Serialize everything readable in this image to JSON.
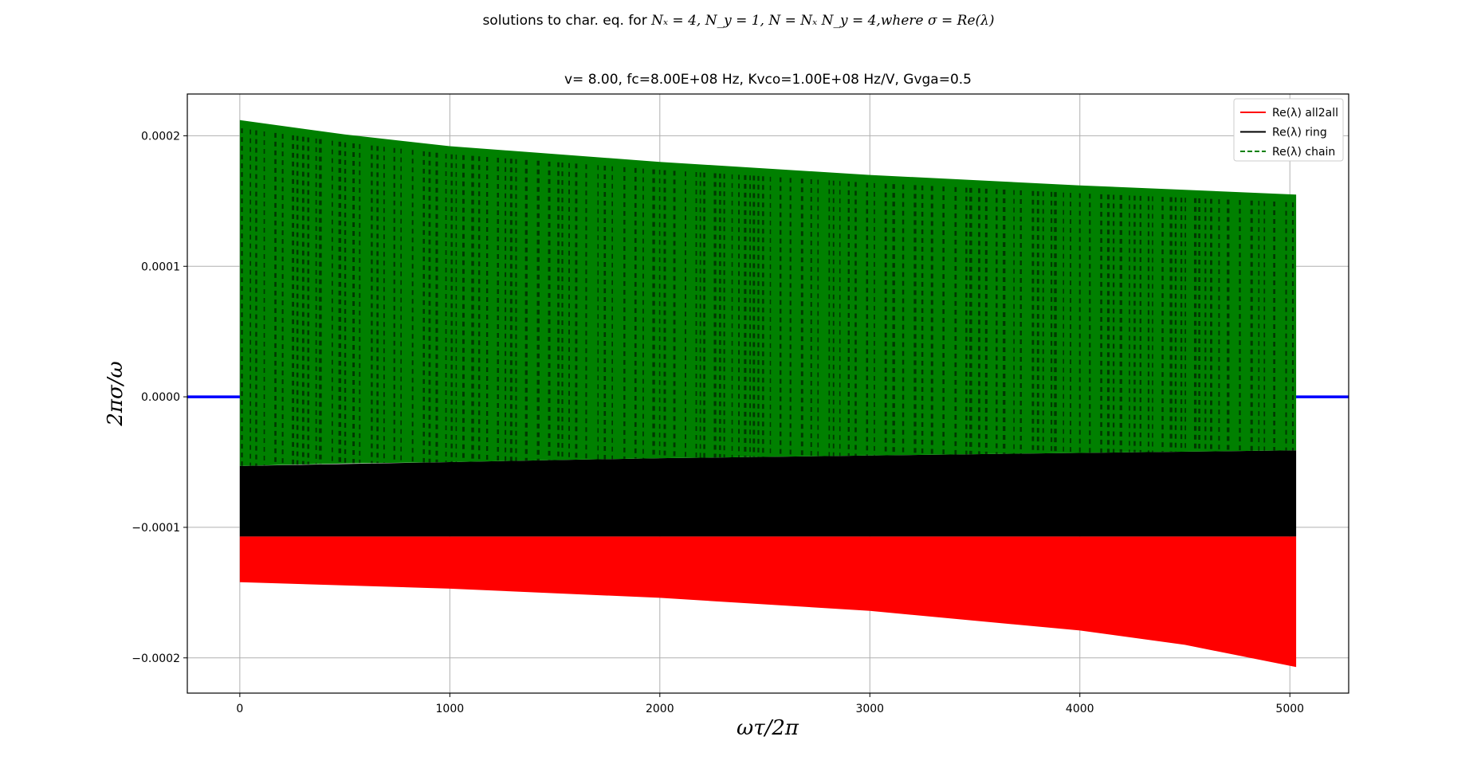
{
  "figure": {
    "suptitle_prefix": "solutions to char. eq. for ",
    "suptitle_math": "Nₓ = 4, N_y = 1, N = Nₓ N_y = 4,where σ = Re(λ)",
    "subtitle": "v= 8.00, fc=8.00E+08 Hz, Kvco=1.00E+08 Hz/V, Gvga=0.5"
  },
  "chart_data": {
    "type": "area",
    "title": "v= 8.00, fc=8.00E+08 Hz, Kvco=1.00E+08 Hz/V, Gvga=0.5",
    "xlabel": "ωτ/2π",
    "ylabel": "2πσ/ω",
    "xlim": [
      -250,
      5280
    ],
    "ylim": [
      -0.000227,
      0.000232
    ],
    "x_ticks": [
      0,
      1000,
      2000,
      3000,
      4000,
      5000
    ],
    "x_tick_labels": [
      "0",
      "1000",
      "2000",
      "3000",
      "4000",
      "5000"
    ],
    "y_ticks": [
      0.0002,
      0.0001,
      0.0,
      -0.0001,
      -0.0002
    ],
    "y_tick_labels": [
      "0.0002",
      "0.0001",
      "0.0000",
      "−0.0001",
      "−0.0002"
    ],
    "grid": true,
    "legend_position": "top-right",
    "colors": {
      "all2all": "#ff0000",
      "ring": "#000000",
      "chain": "#008000",
      "zero_line": "#0000ff",
      "grid": "#b0b0b0"
    },
    "zero_line": {
      "y": 0.0,
      "x_range": [
        -250,
        5280
      ]
    },
    "series": [
      {
        "name": "Re(λ) all2all",
        "style": "solid",
        "x": [
          0,
          1000,
          2000,
          3000,
          4000,
          4500,
          5030
        ],
        "upper": [
          -0.000107,
          -0.000107,
          -0.000107,
          -0.000107,
          -0.000107,
          -0.000107,
          -0.000107
        ],
        "lower": [
          -0.000142,
          -0.000147,
          -0.000154,
          -0.000164,
          -0.000179,
          -0.00019,
          -0.000207
        ]
      },
      {
        "name": "Re(λ) ring",
        "style": "solid",
        "x": [
          0,
          1000,
          2000,
          3000,
          4000,
          5030
        ],
        "upper": [
          -5.3e-05,
          -5e-05,
          -4.7e-05,
          -4.5e-05,
          -4.3e-05,
          -4.1e-05
        ],
        "lower": [
          -0.000107,
          -0.000107,
          -0.000107,
          -0.000107,
          -0.000107,
          -0.000107
        ]
      },
      {
        "name": "Re(λ) chain",
        "style": "dashed",
        "x": [
          0,
          500,
          1000,
          2000,
          3000,
          4000,
          5030
        ],
        "upper": [
          0.000212,
          0.000201,
          0.000192,
          0.00018,
          0.00017,
          0.000162,
          0.000155
        ],
        "lower": [
          -5.3e-05,
          -5.1e-05,
          -5e-05,
          -4.7e-05,
          -4.5e-05,
          -4.3e-05,
          -4.1e-05
        ]
      }
    ]
  }
}
